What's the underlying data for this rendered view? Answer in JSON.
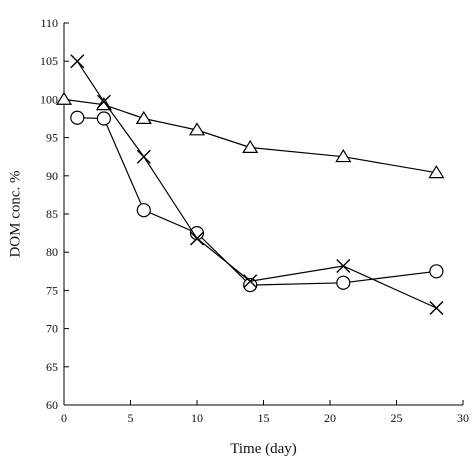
{
  "chart_data": {
    "type": "line",
    "title": "",
    "xlabel": "Time (day)",
    "ylabel": "DOM conc. %",
    "xlim": [
      0,
      30
    ],
    "ylim": [
      60,
      110
    ],
    "xticks": [
      0,
      5,
      10,
      15,
      20,
      25,
      30
    ],
    "yticks": [
      60,
      65,
      70,
      75,
      80,
      85,
      90,
      95,
      100,
      105,
      110
    ],
    "grid": false,
    "legend": "none",
    "series": [
      {
        "marker": "triangle",
        "x": [
          0,
          3,
          6,
          10,
          14,
          21,
          28
        ],
        "y": [
          100,
          99.3,
          97.5,
          96,
          93.7,
          92.5,
          90.4
        ]
      },
      {
        "marker": "circle",
        "x": [
          1,
          3,
          6,
          10,
          14,
          21,
          28
        ],
        "y": [
          97.6,
          97.5,
          85.5,
          82.5,
          75.7,
          76,
          77.5
        ]
      },
      {
        "marker": "cross",
        "x": [
          1,
          3,
          6,
          10,
          14,
          21,
          28
        ],
        "y": [
          105,
          99.7,
          92.5,
          81.8,
          76.2,
          78.2,
          72.7
        ]
      }
    ]
  }
}
